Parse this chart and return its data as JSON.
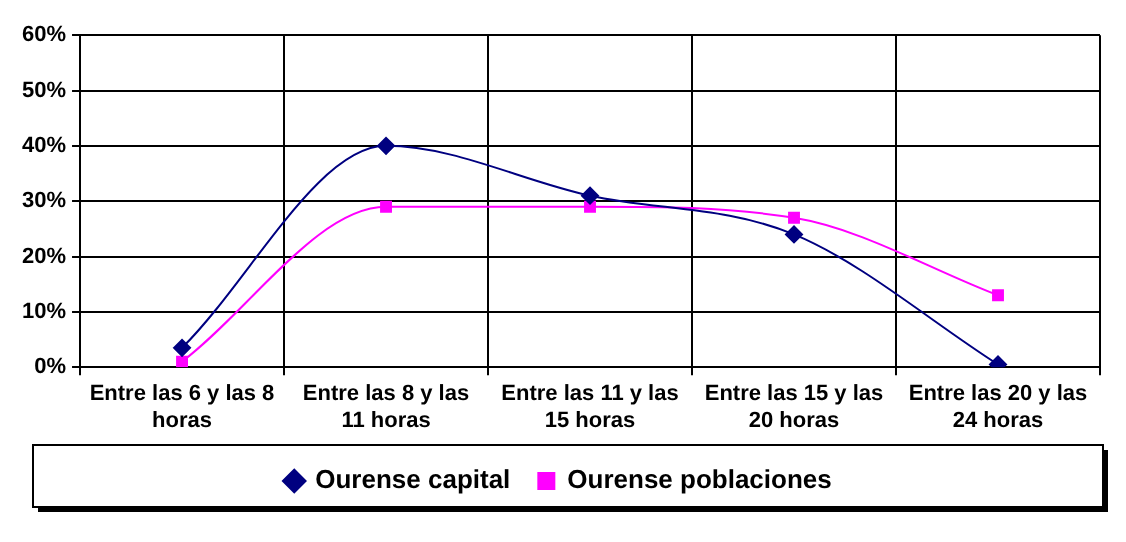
{
  "chart_data": {
    "type": "line",
    "categories": [
      "Entre las 6 y las 8 horas",
      "Entre las 8 y las 11 horas",
      "Entre las 11 y las 15 horas",
      "Entre las 15 y las 20 horas",
      "Entre las 20 y las 24 horas"
    ],
    "series": [
      {
        "name": "Ourense capital",
        "color": "#000080",
        "marker": "diamond",
        "values": [
          3.5,
          40,
          31,
          24,
          0.5
        ]
      },
      {
        "name": "Ourense poblaciones",
        "color": "#ff00ff",
        "marker": "square",
        "values": [
          1,
          29,
          29,
          27,
          13
        ]
      }
    ],
    "ylim": [
      0,
      60
    ],
    "yticks": [
      {
        "value": 0,
        "label": "0%"
      },
      {
        "value": 10,
        "label": "10%"
      },
      {
        "value": 20,
        "label": "20%"
      },
      {
        "value": 30,
        "label": "30%"
      },
      {
        "value": 40,
        "label": "40%"
      },
      {
        "value": 50,
        "label": "50%"
      },
      {
        "value": 60,
        "label": "60%"
      }
    ],
    "grid": true,
    "legend": "bottom"
  }
}
